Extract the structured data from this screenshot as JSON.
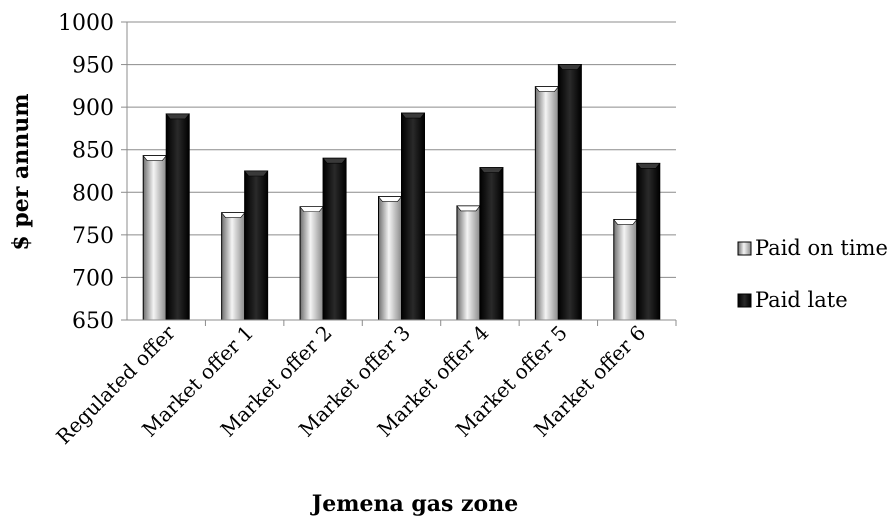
{
  "chart_data": {
    "type": "bar",
    "title": "",
    "xlabel": "Jemena gas zone",
    "ylabel": "$ per annum",
    "ylim": [
      650,
      1000
    ],
    "yticks": [
      650,
      700,
      750,
      800,
      850,
      900,
      950,
      1000
    ],
    "categories": [
      "Regulated offer",
      "Market offer 1",
      "Market offer 2",
      "Market offer 3",
      "Market offer 4",
      "Market offer 5",
      "Market offer 6"
    ],
    "series": [
      {
        "name": "Paid on time",
        "values": [
          843,
          776,
          783,
          795,
          784,
          924,
          768
        ],
        "color": "#9a9a9a"
      },
      {
        "name": "Paid late",
        "values": [
          892,
          825,
          840,
          893,
          829,
          950,
          834
        ],
        "color": "#111111"
      }
    ],
    "grid": true,
    "legend_position": "right"
  }
}
